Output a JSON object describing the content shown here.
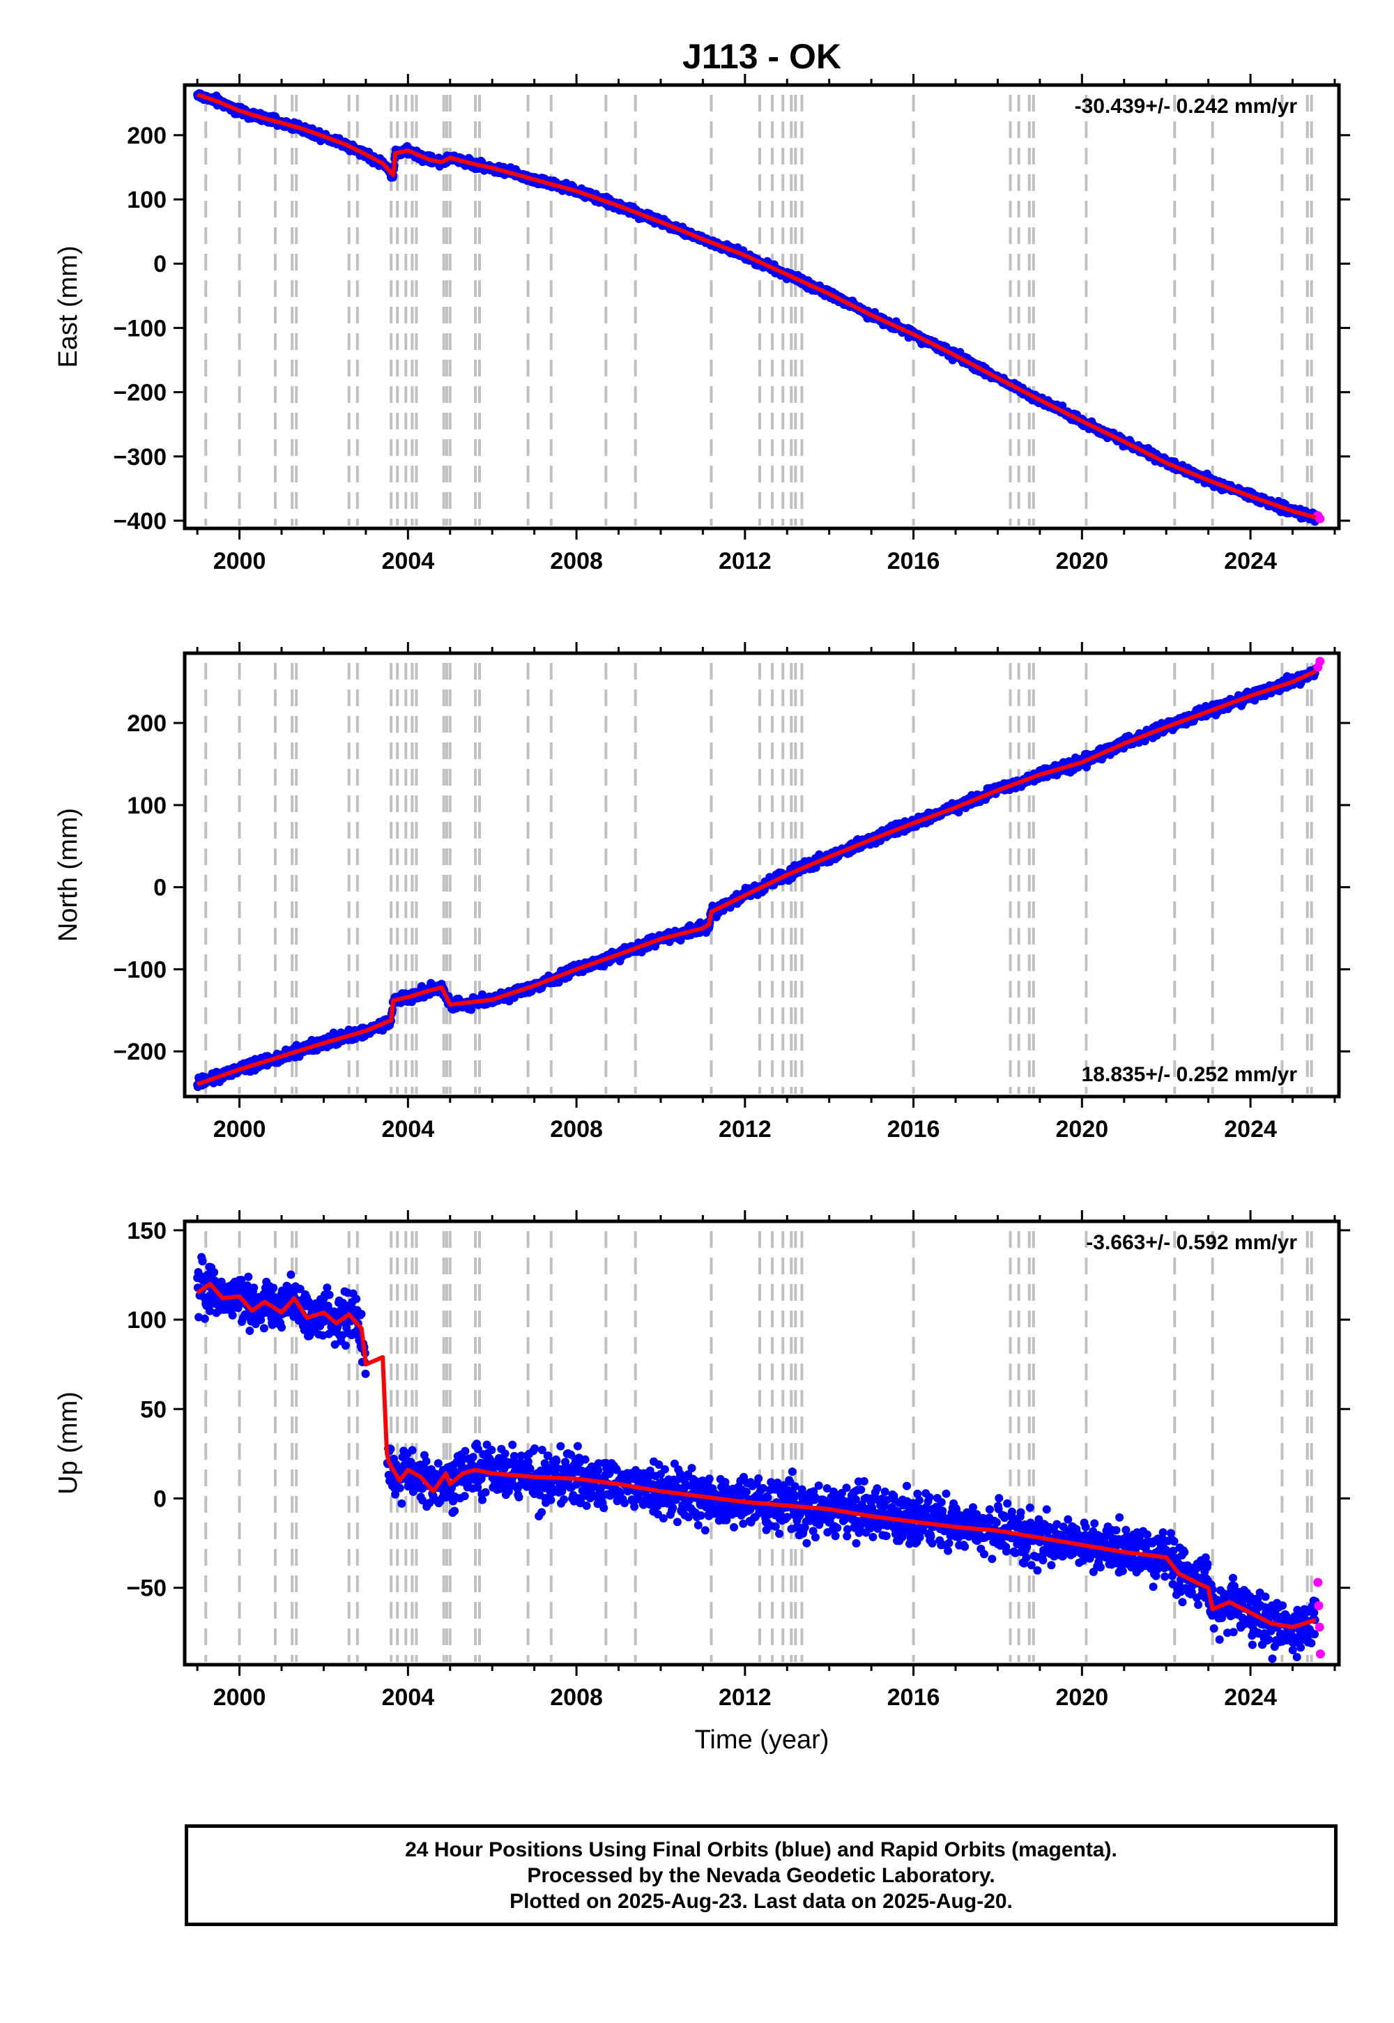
{
  "title": "J113 - OK",
  "colors": {
    "final": "#0000ff",
    "rapid": "#ff00ff",
    "model": "#ff0000",
    "steps": "#c0c0c0",
    "frame": "#000000"
  },
  "chart_data": [
    {
      "type": "scatter",
      "panel": "east",
      "ylabel": "East (mm)",
      "xlabel": "",
      "xlim": [
        1998.7,
        2026.1
      ],
      "ylim": [
        -412,
        278
      ],
      "xticks": [
        2000,
        2004,
        2008,
        2012,
        2016,
        2020,
        2024
      ],
      "yticks": [
        -400,
        -300,
        -200,
        -100,
        0,
        100,
        200
      ],
      "rate_text": "-30.439+/- 0.242 mm/yr",
      "rate_position": "top-right",
      "grid": false,
      "series": [
        {
          "x": [
            1999.0,
            1999.5,
            2000.0,
            2000.5,
            2001.0,
            2001.5,
            2002.0,
            2002.5,
            2003.0,
            2003.4,
            2003.65,
            2003.7,
            2004.0,
            2004.5,
            2004.8,
            2005.0,
            2005.5,
            2006.0,
            2007.0,
            2008.0,
            2009.0,
            2010.0,
            2011.0,
            2012.0,
            2013.0,
            2014.0,
            2015.0,
            2016.0,
            2017.0,
            2018.0,
            2019.0,
            2020.0,
            2021.0,
            2022.0,
            2023.0,
            2024.0,
            2025.0,
            2025.55
          ],
          "y": [
            263,
            252,
            238,
            228,
            219,
            210,
            198,
            186,
            170,
            156,
            138,
            172,
            176,
            162,
            158,
            165,
            156,
            149,
            131,
            113,
            90,
            65,
            38,
            13,
            -17,
            -47,
            -80,
            -110,
            -143,
            -178,
            -212,
            -245,
            -277,
            -310,
            -337,
            -362,
            -385,
            -395
          ]
        }
      ],
      "rapid": {
        "x": [
          2025.6,
          2025.65
        ],
        "y": [
          -392,
          -397
        ]
      }
    },
    {
      "type": "scatter",
      "panel": "north",
      "ylabel": "North (mm)",
      "xlabel": "",
      "xlim": [
        1998.7,
        2026.1
      ],
      "ylim": [
        -255,
        285
      ],
      "xticks": [
        2000,
        2004,
        2008,
        2012,
        2016,
        2020,
        2024
      ],
      "yticks": [
        -200,
        -100,
        0,
        100,
        200
      ],
      "rate_text": "18.835+/- 0.252 mm/yr",
      "rate_position": "bottom-right",
      "grid": false,
      "series": [
        {
          "x": [
            1999.0,
            2000.0,
            2001.0,
            2002.0,
            2003.0,
            2003.6,
            2003.65,
            2004.0,
            2004.5,
            2004.8,
            2005.0,
            2005.5,
            2006.0,
            2007.0,
            2008.0,
            2009.0,
            2010.0,
            2011.0,
            2011.15,
            2011.2,
            2012.0,
            2013.0,
            2014.0,
            2015.0,
            2016.0,
            2017.0,
            2018.0,
            2019.0,
            2020.0,
            2021.0,
            2022.0,
            2023.0,
            2024.0,
            2025.0,
            2025.55
          ],
          "y": [
            -240,
            -222,
            -206,
            -190,
            -175,
            -162,
            -138,
            -134,
            -126,
            -122,
            -143,
            -140,
            -137,
            -120,
            -100,
            -82,
            -63,
            -50,
            -45,
            -30,
            -10,
            15,
            37,
            58,
            78,
            97,
            118,
            137,
            152,
            175,
            195,
            214,
            233,
            250,
            263
          ]
        }
      ],
      "rapid": {
        "x": [
          2025.6,
          2025.65
        ],
        "y": [
          268,
          275
        ]
      }
    },
    {
      "type": "scatter",
      "panel": "up",
      "ylabel": "Up (mm)",
      "xlabel": "Time (year)",
      "xlim": [
        1998.7,
        2026.1
      ],
      "ylim": [
        -93,
        155
      ],
      "xticks": [
        2000,
        2004,
        2008,
        2012,
        2016,
        2020,
        2024
      ],
      "yticks": [
        -50,
        0,
        50,
        100,
        150
      ],
      "rate_text": "-3.663+/- 0.592 mm/yr",
      "rate_position": "top-right",
      "grid": false,
      "series": [
        {
          "x": [
            1999.0,
            1999.3,
            1999.6,
            2000.0,
            2000.3,
            2000.6,
            2001.0,
            2001.3,
            2001.6,
            2002.0,
            2002.3,
            2002.6,
            2002.9,
            2003.0,
            2003.4,
            2003.5,
            2003.55,
            2003.8,
            2004.0,
            2004.3,
            2004.6,
            2004.9,
            2005.0,
            2005.3,
            2005.6,
            2006.0,
            2007.0,
            2008.0,
            2009.0,
            2010.0,
            2011.0,
            2012.0,
            2013.0,
            2014.0,
            2015.0,
            2016.0,
            2017.0,
            2018.0,
            2019.0,
            2020.0,
            2021.0,
            2022.0,
            2022.3,
            2022.8,
            2023.0,
            2023.1,
            2023.5,
            2024.0,
            2024.5,
            2025.0,
            2025.55
          ],
          "y": [
            115,
            120,
            112,
            113,
            105,
            110,
            104,
            112,
            101,
            104,
            98,
            103,
            95,
            75,
            79,
            25,
            20,
            10,
            16,
            12,
            4,
            14,
            8,
            14,
            16,
            14,
            12,
            11,
            8,
            4,
            1,
            -2,
            -4,
            -6,
            -10,
            -13,
            -16,
            -18,
            -22,
            -26,
            -30,
            -33,
            -42,
            -48,
            -50,
            -62,
            -58,
            -64,
            -70,
            -72,
            -68
          ]
        }
      ],
      "rapid": {
        "x": [
          2025.6,
          2025.62,
          2025.64,
          2025.66
        ],
        "y": [
          -47,
          -60,
          -72,
          -87
        ]
      }
    }
  ],
  "steps": [
    1999.2,
    2000.0,
    2000.85,
    2001.25,
    2001.35,
    2002.6,
    2002.8,
    2003.6,
    2003.75,
    2003.95,
    2004.1,
    2004.2,
    2004.85,
    2004.92,
    2005.0,
    2005.6,
    2005.7,
    2006.85,
    2007.4,
    2008.7,
    2009.4,
    2011.2,
    2012.35,
    2012.65,
    2012.9,
    2013.1,
    2013.2,
    2013.35,
    2016.0,
    2018.3,
    2018.5,
    2018.75,
    2018.85,
    2020.1,
    2022.2,
    2023.1,
    2024.75,
    2025.35,
    2025.45
  ],
  "footer": {
    "line1": "24 Hour Positions Using Final Orbits (blue) and Rapid Orbits (magenta).",
    "line2": "Processed by the Nevada Geodetic Laboratory.",
    "line3": "Plotted on 2025-Aug-23. Last data on 2025-Aug-20."
  }
}
